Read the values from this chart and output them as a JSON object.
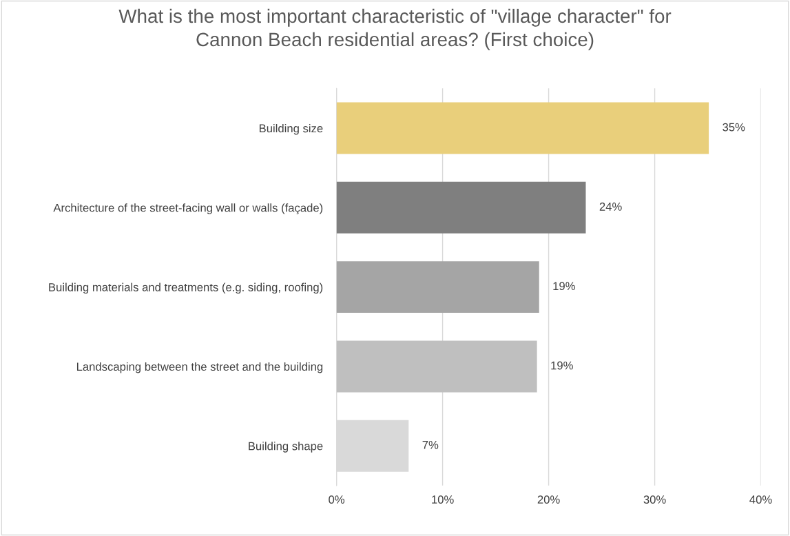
{
  "chart_data": {
    "type": "bar",
    "orientation": "horizontal",
    "title": "What is the most important characteristic of \"village character\" for\nCannon Beach residential areas? (First choice)",
    "categories": [
      "Building size",
      "Architecture of the street-facing wall or walls (façade)",
      "Building materials and treatments (e.g. siding, roofing)",
      "Landscaping between the street and the building",
      "Building shape"
    ],
    "values": [
      35.1,
      23.5,
      19.1,
      18.9,
      6.8
    ],
    "colors": [
      "#e9cf7b",
      "#7f7f7f",
      "#a5a5a5",
      "#bfbfbf",
      "#d9d9d9"
    ],
    "value_labels": [
      "35%",
      "24%",
      "19%",
      "19%",
      "7%"
    ],
    "xlim": [
      0,
      40
    ],
    "xticks": [
      {
        "value": 0,
        "label": "0%"
      },
      {
        "value": 10,
        "label": "10%"
      },
      {
        "value": 20,
        "label": "20%"
      },
      {
        "value": 30,
        "label": "30%"
      },
      {
        "value": 40,
        "label": "40%"
      }
    ],
    "grid": "x"
  }
}
